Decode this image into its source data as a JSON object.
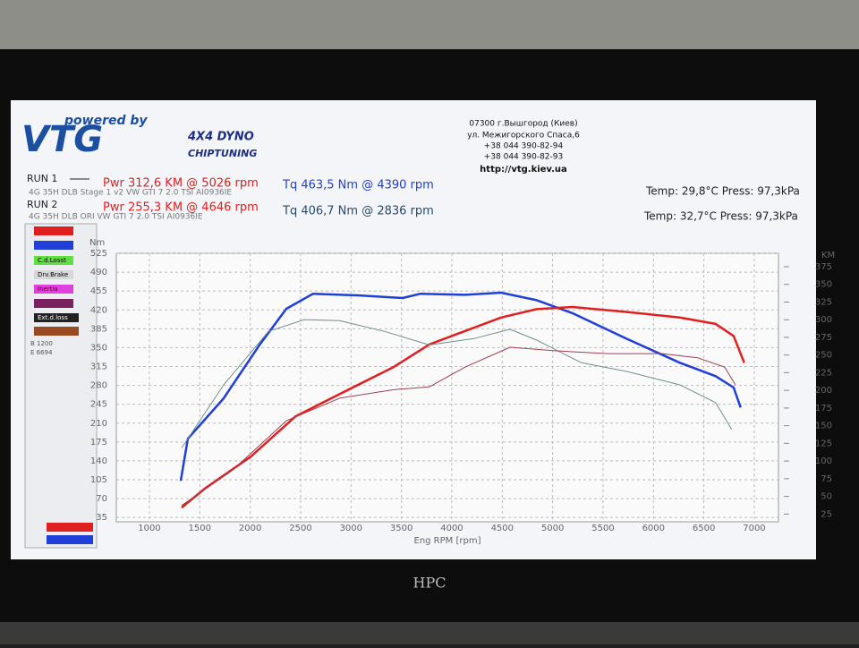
{
  "header": {
    "powered": "powered by",
    "brand": "VTG",
    "dyno": "4X4 DYNO",
    "chiptuning": "CHIPTUNING",
    "address": [
      "07300 г.Вышгород (Киев)",
      "ул. Межигорского Спаса,6",
      "+38 044 390-82-94",
      "+38 044 390-82-93",
      "http://vtg.kiev.ua"
    ]
  },
  "runs": [
    {
      "label": "RUN 1",
      "power": "Pwr  312,6 KM @ 5026 rpm",
      "torque": "Tq 463,5 Nm @ 4390 rpm",
      "car": "4G 35H DLB Stage 1 v2 VW GTI 7 2.0 TSI AI0936IE",
      "conditions": "Temp: 29,8°C   Press: 97,3kPa"
    },
    {
      "label": "RUN 2",
      "power": "Pwr  255,3 KM @ 4646 rpm",
      "torque": "Tq 406,7 Nm @ 2836 rpm",
      "car": "4G 35H DLB ORI VW GTI 7 2.0 TSI AI0936IE",
      "conditions": "Temp: 32,7°C   Press: 97,3kPa"
    }
  ],
  "panel": {
    "items": [
      "C.d.Losst",
      "Drv.Brake",
      "Inertia",
      "Ext.d.loss"
    ],
    "notes": [
      "B 1200",
      "E 6694"
    ]
  },
  "monitor": {
    "brand": "HPC"
  },
  "chart_data": {
    "type": "line",
    "x_label": "Eng RPM [rpm]",
    "y_label": "Nm",
    "y2_label": "KM",
    "grid": true,
    "xlim": [
      672,
      7240
    ],
    "xticks": [
      1000,
      1500,
      2000,
      2500,
      3000,
      3500,
      4000,
      4500,
      5000,
      5500,
      6000,
      6500,
      7000
    ],
    "ylim": [
      27,
      525
    ],
    "yticks": [
      35,
      70,
      105,
      140,
      175,
      210,
      245,
      280,
      315,
      350,
      385,
      420,
      455,
      490,
      525
    ],
    "y2lim": [
      14,
      394
    ],
    "y2ticks": [
      25,
      50,
      75,
      100,
      125,
      150,
      175,
      200,
      225,
      250,
      275,
      300,
      325,
      350,
      375
    ],
    "series": [
      {
        "color": "#1f3fd6",
        "width": 2.5,
        "x": [
          1311,
          1381,
          1737,
          2092,
          2358,
          2624,
          3068,
          3511,
          3689,
          4133,
          4488,
          4842,
          5197,
          5729,
          6262,
          6617,
          6795,
          6865
        ],
        "values": [
          103,
          181,
          256,
          355,
          422,
          450,
          447,
          442,
          450,
          448,
          452,
          438,
          414,
          367,
          322,
          297,
          276,
          239
        ]
      },
      {
        "color": "#e02020",
        "width": 2.5,
        "axis": "y2",
        "x": [
          1320,
          1559,
          2003,
          2447,
          2890,
          3423,
          3778,
          4133,
          4488,
          4842,
          5197,
          5729,
          6262,
          6617,
          6795,
          6901
        ],
        "values": [
          34,
          62,
          106,
          163,
          195,
          233,
          265,
          284,
          303,
          315,
          318,
          311,
          303,
          294,
          277,
          239
        ]
      },
      {
        "color": "#6f8f92",
        "width": 1,
        "x": [
          1320,
          1737,
          2181,
          2536,
          2890,
          3334,
          3778,
          4222,
          4577,
          4842,
          5286,
          5729,
          6262,
          6617,
          6777
        ],
        "values": [
          164,
          281,
          380,
          402,
          400,
          380,
          355,
          367,
          384,
          364,
          322,
          306,
          281,
          248,
          198
        ]
      },
      {
        "color": "#a04050",
        "width": 1,
        "axis": "y2",
        "x": [
          1320,
          1825,
          2358,
          2890,
          3423,
          3778,
          4133,
          4577,
          5020,
          5552,
          6085,
          6440,
          6706,
          6812
        ],
        "values": [
          37,
          87,
          157,
          189,
          201,
          205,
          233,
          261,
          256,
          252,
          252,
          246,
          233,
          208
        ]
      }
    ]
  }
}
